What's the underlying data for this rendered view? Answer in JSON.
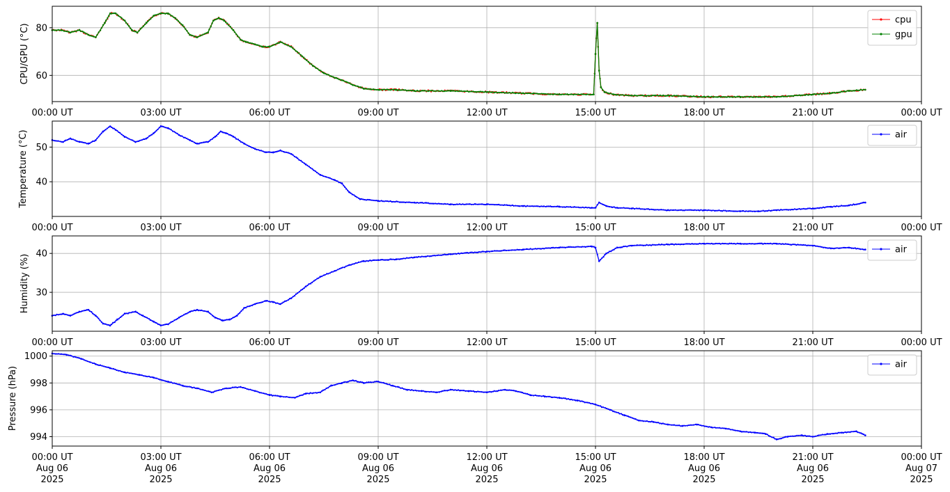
{
  "chart_data": [
    {
      "type": "line",
      "ylabel": "CPU/GPU (°C)",
      "xlim_hours": [
        0,
        24
      ],
      "ylim": [
        49,
        89
      ],
      "yticks": [
        60,
        80
      ],
      "xticks": [
        "00:00 UT",
        "03:00 UT",
        "06:00 UT",
        "09:00 UT",
        "12:00 UT",
        "15:00 UT",
        "18:00 UT",
        "21:00 UT",
        "00:00 UT"
      ],
      "grid": true,
      "legend": "top-right",
      "series": [
        {
          "name": "cpu",
          "color": "#ff0000",
          "x": [
            0,
            0.25,
            0.5,
            0.75,
            1.0,
            1.2,
            1.45,
            1.6,
            1.75,
            2.0,
            2.2,
            2.35,
            2.6,
            2.8,
            3.0,
            3.2,
            3.4,
            3.6,
            3.8,
            4.0,
            4.3,
            4.45,
            4.6,
            4.75,
            5.0,
            5.2,
            5.35,
            5.6,
            5.8,
            6.0,
            6.3,
            6.6,
            6.9,
            7.2,
            7.5,
            7.8,
            8.0,
            8.3,
            8.6,
            9.0,
            9.5,
            10,
            11,
            12,
            13,
            14,
            14.95,
            15.0,
            15.05,
            15.1,
            15.15,
            15.25,
            15.5,
            16,
            17,
            18,
            19,
            20,
            21,
            21.5,
            22,
            22.45
          ],
          "y": [
            79,
            79,
            78,
            79,
            77,
            76,
            82,
            86,
            86,
            83,
            79,
            78,
            82,
            85,
            86,
            86,
            84,
            81,
            77,
            76,
            78,
            83,
            84,
            83,
            79,
            75,
            74,
            73,
            72,
            72,
            74,
            72,
            68,
            64,
            61,
            59,
            58,
            56,
            54.5,
            54,
            54,
            53.5,
            53.5,
            53,
            52.5,
            52,
            52,
            69,
            82,
            62,
            55,
            53,
            52,
            51.5,
            51.5,
            51,
            51,
            51,
            52,
            52.5,
            53.5,
            54
          ]
        },
        {
          "name": "gpu",
          "color": "#008000",
          "x": [
            0,
            0.25,
            0.5,
            0.75,
            1.0,
            1.2,
            1.45,
            1.6,
            1.75,
            2.0,
            2.2,
            2.35,
            2.6,
            2.8,
            3.0,
            3.2,
            3.4,
            3.6,
            3.8,
            4.0,
            4.3,
            4.45,
            4.6,
            4.75,
            5.0,
            5.2,
            5.35,
            5.6,
            5.8,
            6.0,
            6.3,
            6.6,
            6.9,
            7.2,
            7.5,
            7.8,
            8.0,
            8.3,
            8.6,
            9.0,
            9.5,
            10,
            11,
            12,
            13,
            14,
            14.95,
            15.0,
            15.05,
            15.1,
            15.15,
            15.25,
            15.5,
            16,
            17,
            18,
            19,
            20,
            21,
            21.5,
            22,
            22.45
          ],
          "y": [
            79,
            79,
            78,
            79,
            77,
            76,
            82,
            86,
            86,
            83,
            79,
            78,
            82,
            85,
            86,
            86,
            84,
            81,
            77,
            76,
            78,
            83,
            84,
            83,
            79,
            75,
            74,
            73,
            72,
            72,
            74,
            72,
            68,
            64,
            61,
            59,
            58,
            56,
            54.5,
            54,
            54,
            53.5,
            53.5,
            53,
            52.5,
            52,
            52,
            69,
            82,
            62,
            55,
            53,
            52,
            51.5,
            51.5,
            51,
            51,
            51,
            52,
            52.5,
            53.5,
            54
          ]
        }
      ]
    },
    {
      "type": "line",
      "ylabel": "Temperature (°C)",
      "xlim_hours": [
        0,
        24
      ],
      "ylim": [
        30,
        57.5
      ],
      "yticks": [
        40,
        50
      ],
      "xticks": [
        "00:00 UT",
        "03:00 UT",
        "06:00 UT",
        "09:00 UT",
        "12:00 UT",
        "15:00 UT",
        "18:00 UT",
        "21:00 UT",
        "00:00 UT"
      ],
      "grid": true,
      "legend": "top-right",
      "series": [
        {
          "name": "air",
          "color": "#0000ff",
          "x": [
            0,
            0.3,
            0.5,
            0.75,
            1.0,
            1.2,
            1.4,
            1.6,
            1.75,
            2.0,
            2.3,
            2.6,
            2.8,
            3.0,
            3.2,
            3.5,
            3.8,
            4.0,
            4.3,
            4.5,
            4.65,
            4.8,
            5.0,
            5.3,
            5.6,
            5.9,
            6.1,
            6.3,
            6.6,
            7.0,
            7.4,
            7.8,
            8.0,
            8.2,
            8.5,
            9.0,
            10,
            11,
            12,
            13,
            14,
            14.9,
            15.0,
            15.1,
            15.3,
            15.6,
            16,
            17,
            18,
            19,
            19.5,
            20,
            21,
            21.5,
            22,
            22.45
          ],
          "y": [
            52,
            51.5,
            52.5,
            51.5,
            51,
            52,
            54.5,
            56,
            55,
            53,
            51.5,
            52.5,
            54,
            56,
            55.5,
            53.5,
            52,
            51,
            51.5,
            53,
            54.5,
            54,
            53,
            51,
            49.5,
            48.5,
            48.5,
            49,
            48,
            45,
            42,
            40.5,
            39.5,
            37,
            35,
            34.5,
            34,
            33.5,
            33.5,
            33,
            32.8,
            32.5,
            32.5,
            34,
            33,
            32.5,
            32.3,
            31.8,
            31.8,
            31.5,
            31.5,
            31.8,
            32.3,
            32.8,
            33.2,
            34
          ]
        }
      ]
    },
    {
      "type": "line",
      "ylabel": "Humidity (%)",
      "xlim_hours": [
        0,
        24
      ],
      "ylim": [
        20,
        44.5
      ],
      "yticks": [
        30,
        40
      ],
      "xticks": [
        "00:00 UT",
        "03:00 UT",
        "06:00 UT",
        "09:00 UT",
        "12:00 UT",
        "15:00 UT",
        "18:00 UT",
        "21:00 UT",
        "00:00 UT"
      ],
      "grid": true,
      "legend": "top-right",
      "series": [
        {
          "name": "air",
          "color": "#0000ff",
          "x": [
            0,
            0.3,
            0.5,
            0.75,
            1.0,
            1.2,
            1.4,
            1.6,
            1.8,
            2.0,
            2.3,
            2.5,
            2.8,
            3.0,
            3.2,
            3.5,
            3.8,
            4.0,
            4.3,
            4.5,
            4.7,
            4.9,
            5.1,
            5.3,
            5.6,
            5.9,
            6.1,
            6.3,
            6.6,
            7.0,
            7.4,
            7.8,
            8.2,
            8.6,
            9.0,
            9.5,
            10,
            11,
            12,
            13,
            14,
            14.9,
            15.0,
            15.1,
            15.3,
            15.6,
            16,
            17,
            18,
            19,
            20,
            21,
            21.5,
            22,
            22.45
          ],
          "y": [
            24,
            24.5,
            24,
            25,
            25.5,
            24,
            22,
            21.5,
            23,
            24.5,
            25,
            24,
            22.5,
            21.5,
            21.8,
            23.5,
            25,
            25.5,
            25,
            23.5,
            22.8,
            23,
            24,
            26,
            27,
            27.8,
            27.5,
            27,
            28.5,
            31.5,
            34,
            35.5,
            37,
            38,
            38.3,
            38.5,
            39,
            39.8,
            40.5,
            41,
            41.5,
            41.8,
            41.5,
            38,
            40,
            41.5,
            42,
            42.3,
            42.5,
            42.5,
            42.5,
            42,
            41.3,
            41.5,
            41
          ]
        }
      ]
    },
    {
      "type": "line",
      "ylabel": "Pressure (hPa)",
      "xlim_hours": [
        0,
        24
      ],
      "ylim": [
        993.3,
        1000.4
      ],
      "yticks": [
        994,
        996,
        998,
        1000
      ],
      "xticks": [
        "00:00 UT",
        "03:00 UT",
        "06:00 UT",
        "09:00 UT",
        "12:00 UT",
        "15:00 UT",
        "18:00 UT",
        "21:00 UT",
        "00:00 UT"
      ],
      "xticks_date": [
        "Aug 06",
        "Aug 06",
        "Aug 06",
        "Aug 06",
        "Aug 06",
        "Aug 06",
        "Aug 06",
        "Aug 06",
        "Aug 07"
      ],
      "xticks_year": [
        "2025",
        "2025",
        "2025",
        "2025",
        "2025",
        "2025",
        "2025",
        "2025",
        "2025"
      ],
      "grid": true,
      "legend": "top-right",
      "series": [
        {
          "name": "air",
          "color": "#0000ff",
          "x": [
            0,
            0.4,
            0.8,
            1.2,
            1.6,
            2.0,
            2.4,
            2.8,
            3.2,
            3.6,
            4.0,
            4.4,
            4.8,
            5.2,
            5.6,
            6.0,
            6.3,
            6.7,
            7.0,
            7.4,
            7.7,
            8.0,
            8.3,
            8.6,
            9.0,
            9.4,
            9.8,
            10.2,
            10.6,
            11.0,
            11.5,
            12.0,
            12.5,
            12.8,
            13.2,
            13.6,
            14.0,
            14.5,
            15.0,
            15.4,
            15.8,
            16.2,
            16.6,
            17.0,
            17.4,
            17.8,
            18.2,
            18.6,
            19.0,
            19.4,
            19.7,
            20.0,
            20.3,
            20.7,
            21.0,
            21.4,
            21.8,
            22.2,
            22.45
          ],
          "y": [
            1000.2,
            1000.1,
            999.8,
            999.4,
            999.1,
            998.8,
            998.6,
            998.4,
            998.1,
            997.8,
            997.6,
            997.3,
            997.6,
            997.7,
            997.4,
            997.1,
            997.0,
            996.9,
            997.2,
            997.3,
            997.8,
            998.0,
            998.2,
            998.0,
            998.1,
            997.8,
            997.5,
            997.4,
            997.3,
            997.5,
            997.4,
            997.3,
            997.5,
            997.4,
            997.1,
            997.0,
            996.9,
            996.7,
            996.4,
            996.0,
            995.6,
            995.2,
            995.1,
            994.9,
            994.8,
            994.9,
            994.7,
            994.6,
            994.4,
            994.3,
            994.2,
            993.8,
            994.0,
            994.1,
            994.0,
            994.2,
            994.3,
            994.4,
            994.1
          ]
        }
      ]
    }
  ]
}
